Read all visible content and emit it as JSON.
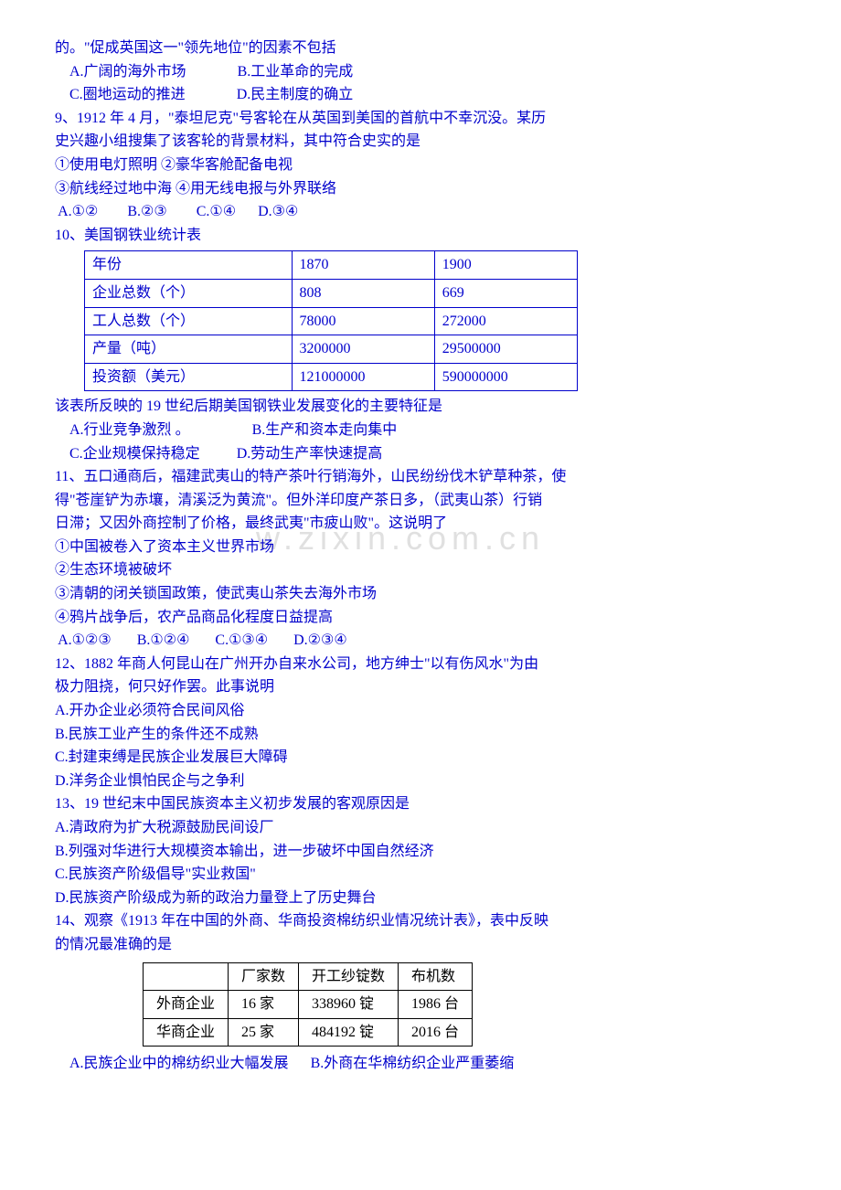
{
  "watermark": "w.zixin.com.cn",
  "q8": {
    "stem": "的。\"促成英国这一\"领先地位\"的因素不包括",
    "A": "A.广阔的海外市场",
    "B": "B.工业革命的完成",
    "C": "C.圈地运动的推进",
    "D": "D.民主制度的确立"
  },
  "q9": {
    "num": "9、",
    "stem1": "1912 年 4 月，\"泰坦尼克\"号客轮在从英国到美国的首航中不幸沉没。某历",
    "stem2": "史兴趣小组搜集了该客轮的背景材料，其中符合史实的是",
    "i1": " ①使用电灯照明    ②豪华客舱配备电视",
    "i2": " ③航线经过地中海  ④用无线电报与外界联络",
    "opts": " A.①②        B.②③        C.①④      D.③④"
  },
  "q10": {
    "num": "10、",
    "title": "美国钢铁业统计表",
    "rows": [
      [
        "年份",
        "1870",
        "1900"
      ],
      [
        "企业总数（个）",
        "808",
        "669"
      ],
      [
        "工人总数（个）",
        "78000",
        "272000"
      ],
      [
        "产量（吨）",
        "3200000",
        "29500000"
      ],
      [
        "投资额（美元）",
        "121000000",
        "590000000"
      ]
    ],
    "stem": "  该表所反映的 19 世纪后期美国钢铁业发展变化的主要特征是",
    "A": "A.行业竞争激烈 ",
    "B": "B.生产和资本走向集中",
    "C": "C.企业规模保持稳定",
    "D": "D.劳动生产率快速提高"
  },
  "q11": {
    "num": "11、",
    "l1": "五口通商后，福建武夷山的特产茶叶行销海外，山民纷纷伐木铲草种茶，使",
    "l2": "得\"苍崖铲为赤壤，清溪泛为黄流\"。但外洋印度产茶日多，（武夷山茶）行销",
    "l3": "日滞；又因外商控制了价格，最终武夷\"市疲山败\"。这说明了",
    "i1": " ①中国被卷入了资本主义世界市场",
    "i2": " ②生态环境被破坏",
    "i3": " ③清朝的闭关锁国政策，使武夷山茶失去海外市场",
    "i4": " ④鸦片战争后，农产品商品化程度日益提高",
    "opts": " A.①②③       B.①②④       C.①③④       D.②③④"
  },
  "q12": {
    "num": "12、",
    "l1": "1882 年商人何昆山在广州开办自来水公司，地方绅士\"以有伤风水\"为由",
    "l2": "极力阻挠，何只好作罢。此事说明",
    "A": " A.开办企业必须符合民间风俗",
    "B": " B.民族工业产生的条件还不成熟",
    "C": " C.封建束缚是民族企业发展巨大障碍",
    "D": " D.洋务企业惧怕民企与之争利"
  },
  "q13": {
    "num": "13、",
    "stem": "19 世纪末中国民族资本主义初步发展的客观原因是",
    "A": " A.清政府为扩大税源鼓励民间设厂",
    "B": " B.列强对华进行大规模资本输出，进一步破坏中国自然经济",
    "C": " C.民族资产阶级倡导\"实业救国\"",
    "D": " D.民族资产阶级成为新的政治力量登上了历史舞台"
  },
  "q14": {
    "num": "14、",
    "l1": "观察《1913 年在中国的外商、华商投资棉纺织业情况统计表》，表中反映",
    "l2": "的情况最准确的是",
    "rows": [
      [
        "",
        "厂家数",
        "开工纱锭数",
        "布机数"
      ],
      [
        "外商企业",
        "16 家",
        "338960 锭",
        "1986 台"
      ],
      [
        "华商企业",
        "25 家",
        "484192 锭",
        "2016 台"
      ]
    ],
    "A": "A.民族企业中的棉纺织业大幅发展",
    "B": "B.外商在华棉纺织企业严重萎缩"
  }
}
